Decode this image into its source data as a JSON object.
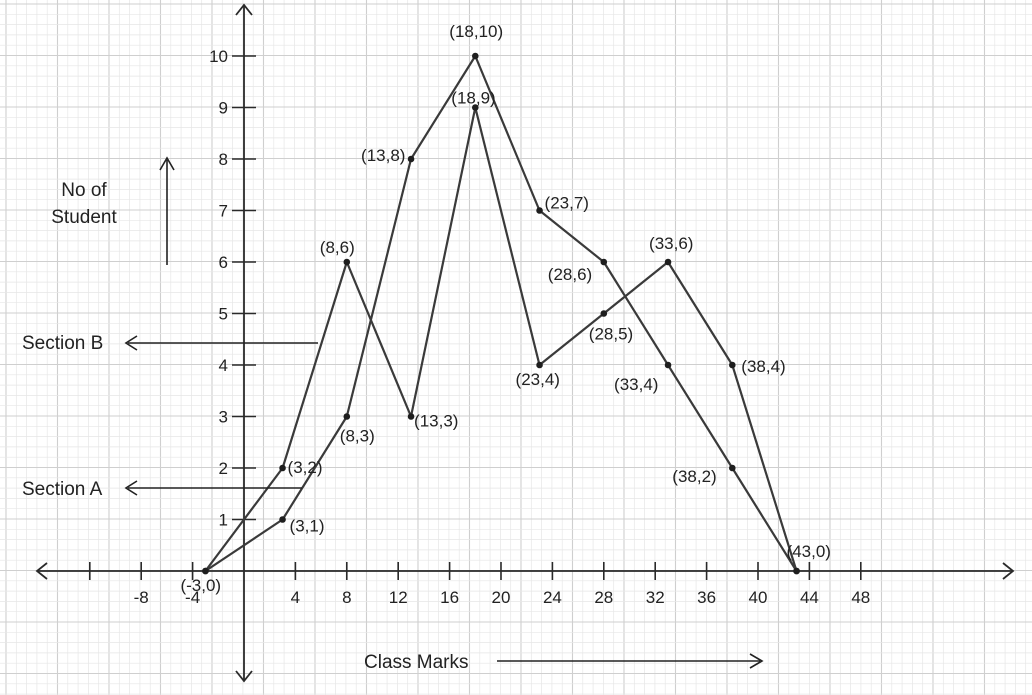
{
  "chart_data": {
    "type": "line",
    "x_ticks": [
      "-8",
      "-4",
      "4",
      "8",
      "12",
      "16",
      "20",
      "24",
      "28",
      "32",
      "36",
      "40",
      "44",
      "48"
    ],
    "y_ticks": [
      "1",
      "2",
      "3",
      "4",
      "5",
      "6",
      "7",
      "8",
      "9",
      "10"
    ],
    "xlabel": "Class Marks",
    "ylabel": [
      "No of",
      "Student"
    ],
    "xlim": [
      -14,
      59
    ],
    "ylim": [
      -2.5,
      11
    ],
    "grid": true,
    "series": [
      {
        "name": "Section A",
        "points": [
          [
            -3,
            0
          ],
          [
            3,
            1
          ],
          [
            8,
            3
          ],
          [
            13,
            8
          ],
          [
            18,
            10
          ],
          [
            23,
            7
          ],
          [
            28,
            6
          ],
          [
            33,
            4
          ],
          [
            38,
            2
          ],
          [
            43,
            0
          ]
        ],
        "labels": [
          "(-3,0)",
          "(3,1)",
          "(8,3)",
          "(13,8)",
          "(18,10)",
          "(23,7)",
          "(28,6)",
          "(33,4)",
          "(38,2)",
          "(43,0)"
        ]
      },
      {
        "name": "Section B",
        "points": [
          [
            -3,
            0
          ],
          [
            3,
            2
          ],
          [
            8,
            6
          ],
          [
            13,
            3
          ],
          [
            18,
            9
          ],
          [
            23,
            4
          ],
          [
            28,
            5
          ],
          [
            33,
            6
          ],
          [
            38,
            4
          ],
          [
            43,
            0
          ]
        ],
        "labels": [
          "",
          "(3,2)",
          "(8,6)",
          "(13,3)",
          "(18,9)",
          "(23,4)",
          "(28,5)",
          "(33,6)",
          "(38,4)",
          ""
        ]
      }
    ]
  },
  "colors": {
    "line": "#3a3a3a",
    "grid_minor": "#e6e6e6",
    "grid_major": "#cfcfcf",
    "axis": "#2a2a2a"
  }
}
